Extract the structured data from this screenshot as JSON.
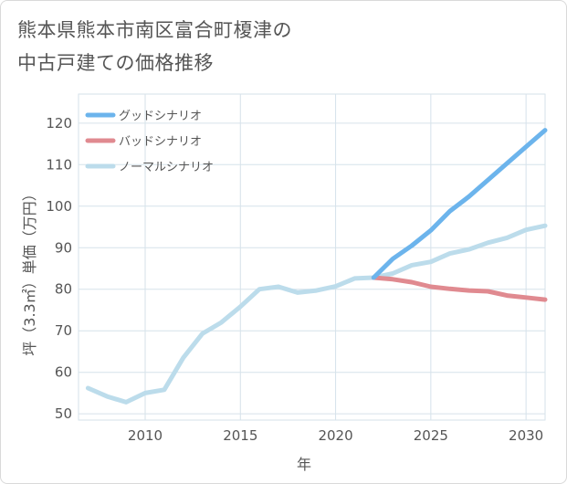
{
  "title_line1": "熊本県熊本市南区富合町榎津の",
  "title_line2": "中古戸建ての価格推移",
  "chart_data": {
    "type": "line",
    "xlabel": "年",
    "ylabel": "坪（3.3㎡）単価（万円）",
    "xlim": [
      2006.5,
      2031
    ],
    "ylim": [
      48.5,
      127
    ],
    "xticks": [
      2010,
      2015,
      2020,
      2025,
      2030
    ],
    "yticks": [
      50,
      60,
      70,
      80,
      90,
      100,
      110,
      120
    ],
    "grid": true,
    "legend_position": "top-left",
    "series": [
      {
        "name": "グッドシナリオ",
        "color": "#6cb4ec",
        "x": [
          2022,
          2023,
          2024,
          2025,
          2026,
          2027,
          2028,
          2029,
          2030,
          2031
        ],
        "y": [
          82.8,
          87.3,
          90.5,
          94.2,
          98.8,
          102.3,
          106.3,
          110.3,
          114.3,
          118.3
        ]
      },
      {
        "name": "バッドシナリオ",
        "color": "#e08a90",
        "x": [
          2022,
          2023,
          2024,
          2025,
          2026,
          2027,
          2028,
          2029,
          2030,
          2031
        ],
        "y": [
          82.8,
          82.4,
          81.7,
          80.6,
          80.1,
          79.7,
          79.5,
          78.5,
          78.0,
          77.5
        ]
      },
      {
        "name": "ノーマルシナリオ",
        "color": "#bcdceb",
        "x": [
          2007,
          2008,
          2009,
          2010,
          2011,
          2012,
          2013,
          2014,
          2015,
          2016,
          2017,
          2018,
          2019,
          2020,
          2021,
          2022,
          2023,
          2024,
          2025,
          2026,
          2027,
          2028,
          2029,
          2030,
          2031
        ],
        "y": [
          56.2,
          54.2,
          52.8,
          55.0,
          55.8,
          63.5,
          69.3,
          72.0,
          75.8,
          80.0,
          80.6,
          79.2,
          79.7,
          80.7,
          82.6,
          82.8,
          83.8,
          85.8,
          86.6,
          88.6,
          89.6,
          91.2,
          92.4,
          94.3,
          95.3
        ]
      }
    ]
  }
}
